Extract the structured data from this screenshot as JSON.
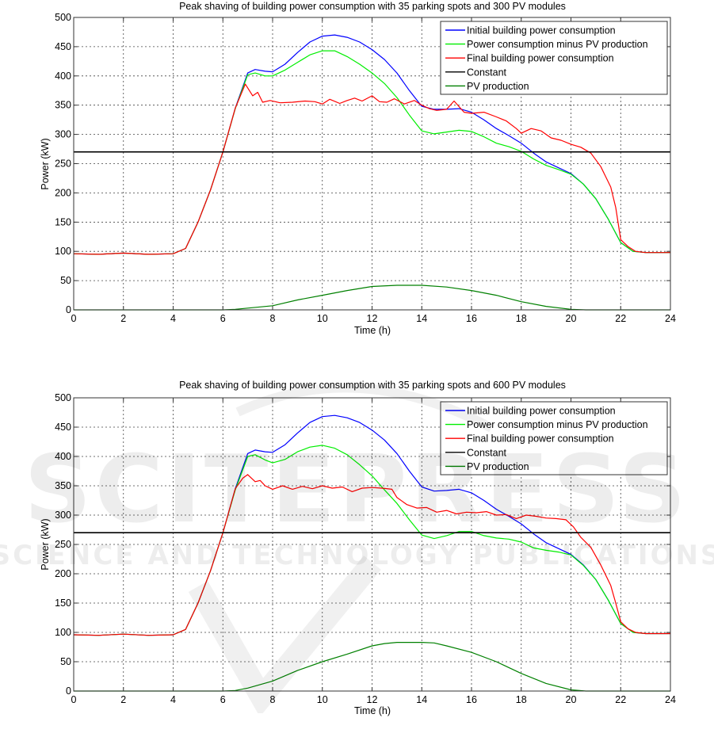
{
  "chart_data": [
    {
      "type": "line",
      "title": "Peak shaving of building power consumption with 35 parking spots and 300 PV modules",
      "xlabel": "Time (h)",
      "ylabel": "Power (kW)",
      "xlim": [
        0,
        24
      ],
      "ylim": [
        0,
        500
      ],
      "xticks": [
        0,
        2,
        4,
        6,
        8,
        10,
        12,
        14,
        16,
        18,
        20,
        22,
        24
      ],
      "yticks": [
        0,
        50,
        100,
        150,
        200,
        250,
        300,
        350,
        400,
        450,
        500
      ],
      "grid": true,
      "legend_position": "top-right",
      "series": [
        {
          "name": "Initial building power consumption",
          "color": "#0000ff",
          "x": [
            0,
            1,
            2,
            3,
            4,
            4.5,
            5,
            5.5,
            6,
            6.5,
            7,
            7.3,
            7.7,
            8,
            8.5,
            9,
            9.5,
            10,
            10.5,
            11,
            11.5,
            12,
            12.5,
            13,
            13.5,
            14,
            14.5,
            15,
            15.5,
            16,
            16.5,
            17,
            17.5,
            18,
            18.5,
            19,
            19.5,
            20,
            20.5,
            21,
            21.5,
            22,
            22.5,
            23,
            24
          ],
          "y": [
            96,
            95,
            97,
            95,
            96,
            105,
            150,
            205,
            270,
            345,
            405,
            411,
            408,
            407,
            420,
            440,
            458,
            468,
            470,
            466,
            458,
            445,
            428,
            405,
            375,
            348,
            343,
            343,
            344,
            338,
            325,
            310,
            298,
            285,
            268,
            253,
            243,
            233,
            215,
            190,
            155,
            115,
            100,
            98,
            98
          ]
        },
        {
          "name": "Power consumption minus PV production",
          "color": "#00ee00",
          "x": [
            0,
            1,
            2,
            3,
            4,
            4.5,
            5,
            5.5,
            6,
            6.5,
            7,
            7.3,
            7.7,
            8,
            8.5,
            9,
            9.5,
            10,
            10.5,
            11,
            11.5,
            12,
            12.5,
            13,
            13.5,
            14,
            14.5,
            15,
            15.5,
            16,
            16.5,
            17,
            17.5,
            18,
            18.5,
            19,
            19.5,
            20,
            20.5,
            21,
            21.5,
            22,
            22.5,
            23,
            24
          ],
          "y": [
            96,
            95,
            97,
            95,
            96,
            105,
            150,
            205,
            270,
            344,
            402,
            405,
            400,
            400,
            410,
            423,
            436,
            443,
            443,
            433,
            420,
            405,
            387,
            363,
            333,
            306,
            301,
            304,
            307,
            305,
            296,
            285,
            279,
            271,
            258,
            247,
            240,
            232,
            215,
            190,
            155,
            115,
            100,
            98,
            98
          ]
        },
        {
          "name": "Final building power consumption",
          "color": "#ff0000",
          "x": [
            0,
            1,
            2,
            3,
            4,
            4.5,
            5,
            5.5,
            6,
            6.5,
            6.9,
            7.2,
            7.4,
            7.6,
            7.9,
            8.3,
            8.8,
            9.3,
            9.7,
            10,
            10.3,
            10.7,
            11,
            11.3,
            11.6,
            12,
            12.3,
            12.6,
            12.9,
            13.3,
            13.7,
            14,
            14.3,
            14.6,
            15,
            15.3,
            15.7,
            16,
            16.5,
            17,
            17.4,
            17.8,
            18,
            18.4,
            18.8,
            19.2,
            19.6,
            20,
            20.4,
            20.8,
            21.2,
            21.6,
            21.8,
            22,
            22.3,
            22.6,
            23,
            24
          ],
          "y": [
            96,
            95,
            97,
            95,
            96,
            105,
            150,
            205,
            270,
            345,
            386,
            366,
            372,
            355,
            358,
            354,
            355,
            357,
            356,
            352,
            360,
            353,
            358,
            362,
            357,
            366,
            356,
            355,
            361,
            352,
            358,
            350,
            344,
            341,
            343,
            357,
            338,
            336,
            338,
            330,
            323,
            310,
            302,
            310,
            306,
            294,
            290,
            283,
            278,
            268,
            245,
            210,
            175,
            120,
            108,
            100,
            98,
            98
          ]
        },
        {
          "name": "Constant",
          "color": "#000000",
          "x": [
            0,
            24
          ],
          "y": [
            270,
            270
          ]
        },
        {
          "name": "PV production",
          "color": "#008000",
          "x": [
            0,
            6,
            6.5,
            7,
            8,
            9,
            10,
            11,
            12,
            13,
            14,
            15,
            16,
            17,
            18,
            19,
            20,
            20.6,
            24
          ],
          "y": [
            0,
            0,
            1,
            3,
            7,
            17,
            25,
            33,
            40,
            42,
            42,
            39,
            33,
            25,
            14,
            6,
            1,
            0,
            0
          ]
        }
      ]
    },
    {
      "type": "line",
      "title": "Peak shaving of building power consumption with 35 parking spots and 600 PV modules",
      "xlabel": "Time (h)",
      "ylabel": "Power (kW)",
      "xlim": [
        0,
        24
      ],
      "ylim": [
        0,
        500
      ],
      "xticks": [
        0,
        2,
        4,
        6,
        8,
        10,
        12,
        14,
        16,
        18,
        20,
        22,
        24
      ],
      "yticks": [
        0,
        50,
        100,
        150,
        200,
        250,
        300,
        350,
        400,
        450,
        500
      ],
      "grid": true,
      "legend_position": "top-right",
      "series": [
        {
          "name": "Initial building power consumption",
          "color": "#0000ff",
          "x": [
            0,
            1,
            2,
            3,
            4,
            4.5,
            5,
            5.5,
            6,
            6.5,
            7,
            7.3,
            7.7,
            8,
            8.5,
            9,
            9.5,
            10,
            10.5,
            11,
            11.5,
            12,
            12.5,
            13,
            13.5,
            14,
            14.5,
            15,
            15.5,
            16,
            16.5,
            17,
            17.5,
            18,
            18.5,
            19,
            19.5,
            20,
            20.5,
            21,
            21.5,
            22,
            22.5,
            23,
            24
          ],
          "y": [
            96,
            95,
            97,
            95,
            96,
            105,
            150,
            205,
            270,
            345,
            405,
            411,
            408,
            407,
            420,
            440,
            458,
            468,
            470,
            466,
            458,
            445,
            428,
            405,
            375,
            348,
            341,
            342,
            344,
            338,
            325,
            310,
            298,
            285,
            268,
            253,
            243,
            233,
            215,
            190,
            155,
            115,
            100,
            98,
            98
          ]
        },
        {
          "name": "Power consumption minus PV production",
          "color": "#00ee00",
          "x": [
            0,
            1,
            2,
            3,
            4,
            4.5,
            5,
            5.5,
            6,
            6.5,
            7,
            7.3,
            7.7,
            8,
            8.5,
            9,
            9.5,
            10,
            10.5,
            11,
            11.5,
            12,
            12.5,
            13,
            13.5,
            14,
            14.5,
            15,
            15.5,
            16,
            16.5,
            17,
            17.5,
            18,
            18.5,
            19,
            19.5,
            20,
            20.5,
            21,
            21.5,
            22,
            22.5,
            23,
            24
          ],
          "y": [
            96,
            95,
            97,
            95,
            96,
            105,
            150,
            205,
            270,
            343,
            400,
            403,
            394,
            389,
            395,
            408,
            416,
            419,
            414,
            403,
            386,
            367,
            343,
            320,
            292,
            266,
            260,
            265,
            272,
            272,
            265,
            261,
            259,
            254,
            244,
            240,
            237,
            232,
            214,
            190,
            155,
            115,
            100,
            98,
            98
          ]
        },
        {
          "name": "Final building power consumption",
          "color": "#ff0000",
          "x": [
            0,
            1,
            2,
            3,
            4,
            4.5,
            5,
            5.5,
            6,
            6.5,
            6.8,
            7,
            7.3,
            7.5,
            7.7,
            8,
            8.4,
            8.8,
            9.2,
            9.6,
            10,
            10.4,
            10.8,
            11.2,
            11.6,
            12,
            12.4,
            12.8,
            13,
            13.4,
            13.8,
            14.2,
            14.6,
            15,
            15.4,
            15.8,
            16.2,
            16.6,
            17,
            17.4,
            17.8,
            18.2,
            18.6,
            19,
            19.4,
            19.8,
            20.1,
            20.4,
            20.8,
            21.2,
            21.6,
            21.8,
            22,
            22.3,
            22.6,
            23,
            24
          ],
          "y": [
            96,
            95,
            97,
            95,
            96,
            105,
            150,
            205,
            270,
            345,
            363,
            369,
            357,
            359,
            350,
            344,
            350,
            344,
            349,
            345,
            350,
            346,
            348,
            340,
            346,
            347,
            346,
            344,
            330,
            318,
            312,
            313,
            305,
            308,
            302,
            305,
            304,
            306,
            300,
            301,
            294,
            300,
            298,
            295,
            294,
            292,
            280,
            262,
            245,
            215,
            180,
            150,
            118,
            106,
            100,
            98,
            98
          ]
        },
        {
          "name": "Constant",
          "color": "#000000",
          "x": [
            0,
            24
          ],
          "y": [
            270,
            270
          ]
        },
        {
          "name": "PV production",
          "color": "#008000",
          "x": [
            0,
            6,
            6.5,
            7,
            8,
            9,
            10,
            11,
            12,
            12.5,
            13,
            14,
            14.5,
            15,
            16,
            17,
            18,
            19,
            20,
            20.6,
            24
          ],
          "y": [
            0,
            0,
            1,
            5,
            17,
            35,
            50,
            63,
            77,
            81,
            83,
            83,
            82,
            77,
            66,
            50,
            30,
            13,
            2,
            0,
            0
          ]
        }
      ]
    }
  ],
  "watermark": {
    "line1": "SCITEPRESS",
    "line2": "SCIENCE AND TECHNOLOGY PUBLICATIONS"
  }
}
